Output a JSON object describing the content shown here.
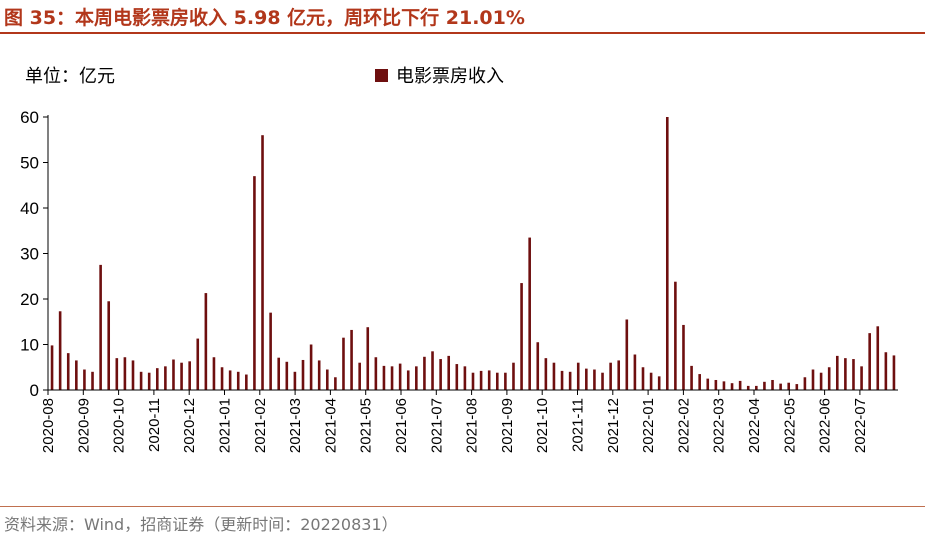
{
  "header": {
    "title": "图 35：本周电影票房收入 5.98 亿元，周环比下行 21.01%"
  },
  "unit_label": "单位：亿元",
  "legend": {
    "label": "电影票房收入"
  },
  "footer": {
    "source": "资料来源：Wind，招商证券（更新时间：20220831）"
  },
  "colors": {
    "bar": "#6e0f0f",
    "accent": "#b2371b"
  },
  "chart_data": {
    "type": "bar",
    "xlabel": "",
    "ylabel": "",
    "ylim": [
      0,
      60
    ],
    "yticks": [
      0,
      10,
      20,
      30,
      40,
      50,
      60
    ],
    "grid": false,
    "legend_position": "top-center",
    "x_tick_labels": [
      "2020-08",
      "2020-09",
      "2020-10",
      "2020-11",
      "2020-12",
      "2021-01",
      "2021-02",
      "2021-03",
      "2021-04",
      "2021-05",
      "2021-06",
      "2021-07",
      "2021-08",
      "2021-09",
      "2021-10",
      "2021-11",
      "2021-12",
      "2022-01",
      "2022-02",
      "2022-03",
      "2022-04",
      "2022-05",
      "2022-06",
      "2022-07"
    ],
    "series": [
      {
        "name": "电影票房收入",
        "values": [
          9.8,
          17.3,
          8.1,
          6.5,
          4.5,
          4.0,
          27.5,
          19.5,
          7.0,
          7.2,
          6.5,
          4.0,
          3.8,
          4.8,
          5.2,
          6.7,
          6.0,
          6.3,
          11.3,
          21.3,
          7.2,
          5.0,
          4.3,
          4.0,
          3.4,
          47.0,
          56.0,
          17.0,
          7.1,
          6.2,
          4.0,
          6.6,
          10.0,
          6.5,
          4.5,
          2.8,
          11.5,
          13.2,
          6.0,
          13.8,
          7.2,
          5.3,
          5.2,
          5.8,
          4.3,
          5.2,
          7.3,
          8.5,
          6.8,
          7.5,
          5.7,
          5.2,
          3.8,
          4.2,
          4.3,
          3.8,
          3.8,
          6.0,
          23.5,
          33.5,
          10.5,
          7.0,
          6.0,
          4.2,
          4.0,
          6.0,
          4.7,
          4.5,
          3.8,
          6.0,
          6.5,
          15.5,
          7.8,
          5.0,
          3.8,
          3.0,
          60.0,
          23.8,
          14.3,
          5.3,
          3.5,
          2.5,
          2.2,
          1.9,
          1.5,
          2.0,
          0.9,
          0.9,
          1.8,
          2.2,
          1.4,
          1.6,
          1.3,
          2.8,
          4.5,
          3.8,
          5.0,
          7.5,
          7.0,
          6.8,
          5.2,
          12.5,
          14.0,
          8.3,
          7.6
        ]
      }
    ]
  }
}
